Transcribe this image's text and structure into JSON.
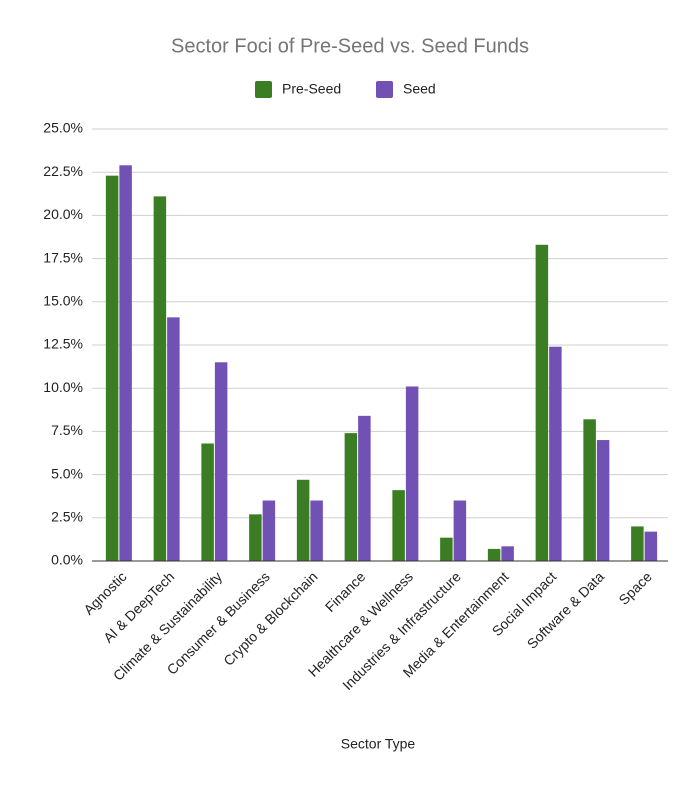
{
  "chart_data": {
    "type": "bar",
    "title": "Sector Foci of Pre-Seed vs. Seed Funds",
    "x_label": "Sector Type",
    "categories": [
      "Agnostic",
      "AI & DeepTech",
      "Climate & Sustainability",
      "Consumer & Business",
      "Crypto & Blockchain",
      "Finance",
      "Healthcare & Wellness",
      "Industries & Infrastructure",
      "Media & Entertainment",
      "Social Impact",
      "Software & Data",
      "Space"
    ],
    "series": [
      {
        "name": "Pre-Seed",
        "color": "#3b7d23",
        "values": [
          22.3,
          21.1,
          6.8,
          2.7,
          4.7,
          7.4,
          4.1,
          1.35,
          0.7,
          18.3,
          8.2,
          2.0
        ]
      },
      {
        "name": "Seed",
        "color": "#7152b4",
        "values": [
          22.9,
          14.1,
          11.5,
          3.5,
          3.5,
          8.4,
          10.1,
          3.5,
          0.85,
          12.4,
          7.0,
          1.7
        ]
      }
    ],
    "ylim": [
      0,
      25
    ],
    "yticks": [
      {
        "value": 0,
        "label": "0.0%"
      },
      {
        "value": 2.5,
        "label": "2.5%"
      },
      {
        "value": 5,
        "label": "5.0%"
      },
      {
        "value": 7.5,
        "label": "7.5%"
      },
      {
        "value": 10,
        "label": "10.0%"
      },
      {
        "value": 12.5,
        "label": "12.5%"
      },
      {
        "value": 15,
        "label": "15.0%"
      },
      {
        "value": 17.5,
        "label": "17.5%"
      },
      {
        "value": 20,
        "label": "20.0%"
      },
      {
        "value": 22.5,
        "label": "22.5%"
      },
      {
        "value": 25,
        "label": "25.0%"
      }
    ],
    "grid": true,
    "legend": "top"
  }
}
